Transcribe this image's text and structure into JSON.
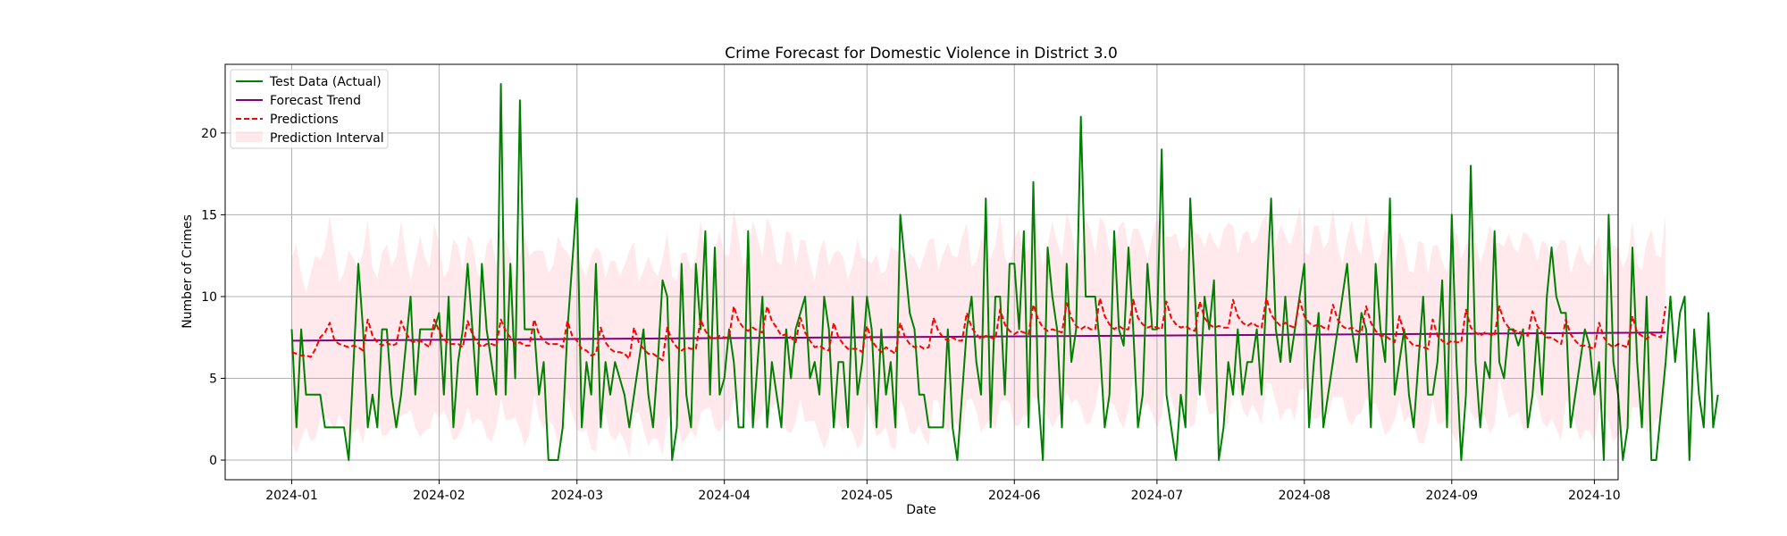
{
  "chart_data": {
    "type": "line",
    "title": "Crime Forecast for Domestic Violence in District 3.0",
    "xlabel": "Date",
    "ylabel": "Number of Crimes",
    "x_start": "2024-01-01",
    "x_end": "2024-09-22",
    "xlim": [
      "2023-12-18",
      "2024-10-06"
    ],
    "ylim": [
      -1.2,
      24.2
    ],
    "x_ticks": [
      {
        "date": "2024-01-01",
        "label": "2024-01"
      },
      {
        "date": "2024-02-01",
        "label": "2024-02"
      },
      {
        "date": "2024-03-01",
        "label": "2024-03"
      },
      {
        "date": "2024-04-01",
        "label": "2024-04"
      },
      {
        "date": "2024-05-01",
        "label": "2024-05"
      },
      {
        "date": "2024-06-01",
        "label": "2024-06"
      },
      {
        "date": "2024-07-01",
        "label": "2024-07"
      },
      {
        "date": "2024-08-01",
        "label": "2024-08"
      },
      {
        "date": "2024-09-01",
        "label": "2024-09"
      },
      {
        "date": "2024-10-01",
        "label": "2024-10"
      }
    ],
    "y_ticks": [
      {
        "value": 0,
        "label": "0"
      },
      {
        "value": 5,
        "label": "5"
      },
      {
        "value": 10,
        "label": "10"
      },
      {
        "value": 15,
        "label": "15"
      },
      {
        "value": 20,
        "label": "20"
      }
    ],
    "grid": true,
    "legend_position": "top-left",
    "legend": [
      {
        "label": "Test Data (Actual)",
        "color": "#008000",
        "style": "solid"
      },
      {
        "label": "Forecast Trend",
        "color": "#800080",
        "style": "solid"
      },
      {
        "label": "Predictions",
        "color": "#ff0000",
        "style": "dashed"
      },
      {
        "label": "Prediction Interval",
        "color": "#ffc0cb",
        "style": "fill"
      }
    ],
    "series": [
      {
        "name": "Test Data (Actual)",
        "color": "#008000",
        "values": [
          8,
          2,
          8,
          4,
          4,
          4,
          4,
          2,
          2,
          2,
          2,
          2,
          0,
          6,
          12,
          8,
          2,
          4,
          2,
          8,
          8,
          4,
          2,
          4,
          7,
          10,
          4,
          8,
          8,
          8,
          8,
          9,
          4,
          10,
          2,
          6,
          8,
          12,
          8,
          4,
          12,
          8,
          6,
          4,
          23,
          4,
          12,
          5,
          22,
          8,
          8,
          8,
          4,
          6,
          0,
          0,
          0,
          2,
          8,
          12,
          16,
          2,
          6,
          4,
          12,
          2,
          6,
          4,
          6,
          5,
          4,
          2,
          4,
          6,
          8,
          4,
          2,
          6,
          11,
          10,
          0,
          2,
          12,
          4,
          2,
          12,
          8,
          14,
          4,
          13,
          4,
          5,
          8,
          6,
          2,
          2,
          14,
          2,
          6,
          10,
          2,
          6,
          4,
          2,
          8,
          5,
          8,
          9,
          10,
          5,
          6,
          4,
          10,
          8,
          2,
          6,
          6,
          2,
          10,
          4,
          6,
          10,
          8,
          2,
          8,
          4,
          6,
          2,
          15,
          12,
          9,
          8,
          4,
          4,
          2,
          2,
          2,
          2,
          8,
          2,
          0,
          4,
          8,
          10,
          6,
          4,
          16,
          2,
          10,
          10,
          4,
          12,
          12,
          8,
          14,
          2,
          17,
          4,
          0,
          13,
          10,
          8,
          2,
          12,
          6,
          8,
          21,
          10,
          10,
          10,
          7,
          2,
          4,
          14,
          8,
          7,
          13,
          8,
          2,
          4,
          12,
          8,
          8,
          19,
          4,
          2,
          0,
          4,
          2,
          16,
          10,
          4,
          10,
          8,
          11,
          0,
          2,
          6,
          4,
          8,
          4,
          6,
          6,
          8,
          4,
          10,
          16,
          8,
          6,
          10,
          6,
          8,
          10,
          12,
          2,
          6,
          9,
          2,
          4,
          6,
          8,
          10,
          12,
          8,
          6,
          9,
          8,
          2,
          12,
          8,
          6,
          16,
          4,
          6,
          8,
          4,
          2,
          6,
          10,
          4,
          4,
          6,
          11,
          2,
          15,
          6,
          0,
          4,
          18,
          6,
          2,
          6,
          5,
          14,
          6,
          5,
          8,
          8,
          7,
          8,
          2,
          4,
          8,
          4,
          10,
          13,
          10,
          9,
          9,
          2,
          4,
          6,
          8,
          7,
          4,
          6,
          0,
          15,
          6,
          4,
          0,
          2,
          13,
          6,
          2,
          10,
          0,
          0,
          3,
          6,
          10,
          6,
          9,
          10,
          0,
          8,
          4,
          2,
          9,
          2,
          4
        ]
      },
      {
        "name": "Forecast Trend",
        "color": "#800080",
        "start": 7.3,
        "end": 7.8
      },
      {
        "name": "Predictions",
        "color": "#ff0000",
        "values": [
          6.6,
          6.5,
          6.4,
          6.4,
          6.3,
          6.8,
          7.5,
          7.8,
          8.4,
          7.3,
          7.1,
          7,
          6.9,
          7,
          6.9,
          6.7,
          8.6,
          7.6,
          7.2,
          7,
          7.2,
          7,
          7.1,
          8.5,
          7.8,
          7.3,
          7.2,
          7.3,
          7.1,
          6.9,
          8.6,
          7.9,
          7.4,
          7.1,
          7.1,
          7.1,
          6.9,
          8.5,
          7.7,
          7.2,
          6.9,
          7.1,
          7.1,
          7,
          8.6,
          7.9,
          7.5,
          7.1,
          7.2,
          7,
          7,
          8.6,
          7.7,
          7.3,
          7.1,
          7.1,
          7.1,
          6.9,
          8.5,
          7.6,
          7.3,
          6.8,
          6.7,
          6.4,
          6.5,
          8.1,
          7.2,
          6.8,
          6.6,
          6.6,
          6.5,
          6.2,
          8.1,
          7.2,
          6.8,
          6.5,
          6.5,
          6.3,
          6.1,
          8.1,
          7.3,
          6.9,
          6.7,
          6.9,
          6.8,
          6.8,
          8.6,
          7.9,
          7.5,
          7.4,
          7.6,
          7.5,
          7.5,
          9.4,
          8.5,
          8.1,
          7.9,
          8.1,
          7.9,
          7.8,
          9.4,
          8.5,
          8.1,
          7.6,
          7.7,
          7.5,
          7.2,
          8.7,
          7.8,
          7.3,
          6.9,
          7,
          6.8,
          6.7,
          8.4,
          7.5,
          7.1,
          6.8,
          6.8,
          6.8,
          6.6,
          8.2,
          7.3,
          6.9,
          6.6,
          6.9,
          6.7,
          6.5,
          8.4,
          7.5,
          7.1,
          6.9,
          7,
          6.8,
          6.9,
          8.7,
          7.9,
          7.5,
          7.3,
          7.5,
          7.3,
          7.3,
          9,
          8.1,
          7.7,
          7.4,
          7.6,
          7.5,
          7.4,
          9.2,
          8.3,
          7.9,
          7.7,
          7.9,
          7.8,
          7.7,
          9.5,
          8.6,
          8.1,
          7.9,
          8,
          7.9,
          7.8,
          9.6,
          8.7,
          8.2,
          8,
          8.2,
          8,
          8,
          9.9,
          8.8,
          8.3,
          8,
          8.2,
          8,
          8,
          9.8,
          8.7,
          8.3,
          8.1,
          8.2,
          8.1,
          8,
          9.7,
          8.7,
          8.3,
          8.1,
          8.2,
          8,
          7.9,
          9.7,
          8.7,
          8.3,
          8.1,
          8.2,
          8.1,
          8.1,
          9.8,
          8.8,
          8.4,
          8.2,
          8.4,
          8.2,
          8.1,
          9.9,
          8.9,
          8.5,
          8.2,
          8.4,
          8.2,
          8.1,
          9.8,
          8.8,
          8.4,
          8.2,
          8.3,
          8.1,
          8,
          9.5,
          8.6,
          8.2,
          8,
          8.1,
          7.9,
          7.8,
          9.4,
          8.4,
          7.9,
          7.6,
          7.6,
          7.4,
          7.2,
          8.8,
          7.7,
          7.3,
          7,
          7,
          6.9,
          6.8,
          8.6,
          7.6,
          7.3,
          7.1,
          7.3,
          7.2,
          7.2,
          9.2,
          8.1,
          7.8,
          7.6,
          7.8,
          7.7,
          7.6,
          9.4,
          8.5,
          8.1,
          7.9,
          7.9,
          7.7,
          7.6,
          9.1,
          8.2,
          7.8,
          7.5,
          7.5,
          7.3,
          7.1,
          8.6,
          7.7,
          7.3,
          7,
          7,
          6.9,
          6.8,
          8.4,
          7.5,
          7.1,
          6.9,
          7.1,
          7,
          6.9,
          8.8,
          7.8,
          7.6,
          7.4,
          7.7,
          7.6,
          7.5,
          9.4
        ]
      }
    ],
    "interval_halfwidth": 5.2
  }
}
